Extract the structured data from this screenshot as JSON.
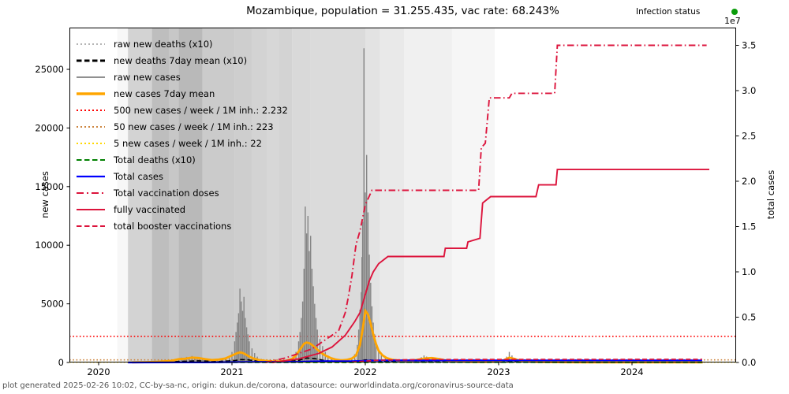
{
  "header": {
    "title": "Mozambique, population = 31.255.435, vac rate: 68.243%",
    "infection_status_label": "Infection status",
    "infection_status_color": "#0a9c0a"
  },
  "footer": {
    "text": "plot generated 2025-02-26 10:02, CC-by-sa-nc, origin: dukun.de/corona, datasource: ourworldindata.org/coronavirus-source-data"
  },
  "axes": {
    "left": {
      "label": "new cases",
      "ticks": [
        "0",
        "5000",
        "10000",
        "15000",
        "20000",
        "25000"
      ],
      "tick_values": [
        0,
        5000,
        10000,
        15000,
        20000,
        25000
      ],
      "ylim": [
        0,
        28560
      ]
    },
    "right": {
      "label": "total cases",
      "offset_label": "1e7",
      "ticks": [
        "0.0",
        "0.5",
        "1.0",
        "1.5",
        "2.0",
        "2.5",
        "3.0",
        "3.5"
      ],
      "tick_values": [
        0,
        0.5,
        1.0,
        1.5,
        2.0,
        2.5,
        3.0,
        3.5
      ],
      "ylim_e7": [
        0,
        3.696
      ]
    },
    "x": {
      "ticks": [
        "2020",
        "2021",
        "2022",
        "2023",
        "2024"
      ],
      "tick_values": [
        2020,
        2021,
        2022,
        2023,
        2024
      ],
      "xlim_years": [
        2019.781,
        2024.781
      ]
    }
  },
  "legend": [
    {
      "label": "raw new deaths (x10)",
      "color": "#ababab",
      "style": "dotted",
      "width": 1.8
    },
    {
      "label": "new deaths 7day mean (x10)",
      "color": "#000000",
      "style": "dashed",
      "width": 3
    },
    {
      "label": "raw new cases",
      "color": "#909090",
      "style": "solid",
      "width": 2
    },
    {
      "label": "new cases 7day mean",
      "color": "#FFA500",
      "style": "solid",
      "width": 3.5
    },
    {
      "label": "500 new cases / week / 1M inh.: 2.232",
      "color": "#FF0000",
      "style": "dotted",
      "width": 2
    },
    {
      "label": "50 new cases / week / 1M inh.: 223",
      "color": "#CD853F",
      "style": "dotted",
      "width": 2
    },
    {
      "label": "5 new cases / week / 1M inh.: 22",
      "color": "#FFD700",
      "style": "dotted",
      "width": 2
    },
    {
      "label": "Total deaths (x10)",
      "color": "#008000",
      "style": "dashed",
      "width": 2
    },
    {
      "label": "Total cases",
      "color": "#0000FF",
      "style": "solid",
      "width": 2.2
    },
    {
      "label": "Total vaccination doses",
      "color": "#DC143C",
      "style": "dashdot",
      "width": 2
    },
    {
      "label": "fully vaccinated",
      "color": "#DC143C",
      "style": "solid",
      "width": 2
    },
    {
      "label": "total booster vaccinations",
      "color": "#DC143C",
      "style": "dashed",
      "width": 2
    }
  ],
  "chart_data": {
    "type": "line",
    "title": "Mozambique, population = 31.255.435, vac rate: 68.243%",
    "xlabel": "",
    "ylabel_left": "new cases",
    "ylabel_right": "total cases",
    "x_unit": "year (decimal)",
    "background_bands": [
      [
        2020.14,
        2020.22,
        "#f7f7f7"
      ],
      [
        2020.22,
        2020.4,
        "#d3d3d3"
      ],
      [
        2020.4,
        2020.53,
        "#bebebe"
      ],
      [
        2020.53,
        2020.6,
        "#c7c7c7"
      ],
      [
        2020.6,
        2020.78,
        "#b9b9b9"
      ],
      [
        2020.78,
        2021.02,
        "#cbcbcb"
      ],
      [
        2021.02,
        2021.15,
        "#cecece"
      ],
      [
        2021.15,
        2021.26,
        "#d3d3d3"
      ],
      [
        2021.26,
        2021.35,
        "#d7d7d7"
      ],
      [
        2021.35,
        2021.45,
        "#d3d3d3"
      ],
      [
        2021.45,
        2021.59,
        "#d9d9d9"
      ],
      [
        2021.59,
        2022.0,
        "#dbdbdb"
      ],
      [
        2022.0,
        2022.11,
        "#e3e3e3"
      ],
      [
        2022.11,
        2022.29,
        "#e9e9e9"
      ],
      [
        2022.29,
        2022.65,
        "#f0f0f0"
      ],
      [
        2022.65,
        2022.97,
        "#f6f6f6"
      ]
    ],
    "thresholds_left_axis": [
      {
        "name": "500 new cases / week / 1M inh.",
        "value": 2232,
        "color": "#FF0000"
      },
      {
        "name": "50 new cases / week / 1M inh.",
        "value": 223,
        "color": "#CD853F"
      },
      {
        "name": "5 new cases / week / 1M inh.",
        "value": 22,
        "color": "#FFD700"
      }
    ],
    "raw_new_cases_bars": [
      [
        2020.25,
        20
      ],
      [
        2020.28,
        35
      ],
      [
        2020.31,
        25
      ],
      [
        2020.34,
        50
      ],
      [
        2020.37,
        40
      ],
      [
        2020.4,
        80
      ],
      [
        2020.43,
        60
      ],
      [
        2020.46,
        120
      ],
      [
        2020.49,
        90
      ],
      [
        2020.52,
        150
      ],
      [
        2020.55,
        200
      ],
      [
        2020.57,
        160
      ],
      [
        2020.6,
        340
      ],
      [
        2020.62,
        420
      ],
      [
        2020.64,
        300
      ],
      [
        2020.66,
        480
      ],
      [
        2020.68,
        380
      ],
      [
        2020.7,
        560
      ],
      [
        2020.72,
        460
      ],
      [
        2020.74,
        420
      ],
      [
        2020.76,
        350
      ],
      [
        2020.78,
        300
      ],
      [
        2020.8,
        260
      ],
      [
        2020.83,
        220
      ],
      [
        2020.86,
        190
      ],
      [
        2020.89,
        240
      ],
      [
        2020.92,
        300
      ],
      [
        2020.95,
        380
      ],
      [
        2020.98,
        480
      ],
      [
        2021.0,
        900
      ],
      [
        2021.02,
        1800
      ],
      [
        2021.03,
        2600
      ],
      [
        2021.04,
        3400
      ],
      [
        2021.05,
        4200
      ],
      [
        2021.06,
        6300
      ],
      [
        2021.07,
        5200
      ],
      [
        2021.08,
        4400
      ],
      [
        2021.09,
        5600
      ],
      [
        2021.1,
        3800
      ],
      [
        2021.11,
        3000
      ],
      [
        2021.12,
        2400
      ],
      [
        2021.13,
        1800
      ],
      [
        2021.15,
        1200
      ],
      [
        2021.17,
        800
      ],
      [
        2021.19,
        500
      ],
      [
        2021.22,
        300
      ],
      [
        2021.25,
        200
      ],
      [
        2021.3,
        120
      ],
      [
        2021.35,
        100
      ],
      [
        2021.4,
        150
      ],
      [
        2021.44,
        300
      ],
      [
        2021.46,
        500
      ],
      [
        2021.48,
        900
      ],
      [
        2021.5,
        1800
      ],
      [
        2021.51,
        2600
      ],
      [
        2021.52,
        3800
      ],
      [
        2021.53,
        5200
      ],
      [
        2021.54,
        8000
      ],
      [
        2021.55,
        13300
      ],
      [
        2021.56,
        11000
      ],
      [
        2021.57,
        12500
      ],
      [
        2021.58,
        9500
      ],
      [
        2021.59,
        10800
      ],
      [
        2021.6,
        8000
      ],
      [
        2021.61,
        6500
      ],
      [
        2021.62,
        5000
      ],
      [
        2021.63,
        3800
      ],
      [
        2021.64,
        2800
      ],
      [
        2021.66,
        2000
      ],
      [
        2021.68,
        1400
      ],
      [
        2021.7,
        900
      ],
      [
        2021.72,
        600
      ],
      [
        2021.75,
        400
      ],
      [
        2021.78,
        250
      ],
      [
        2021.82,
        150
      ],
      [
        2021.86,
        200
      ],
      [
        2021.9,
        400
      ],
      [
        2021.92,
        700
      ],
      [
        2021.94,
        1500
      ],
      [
        2021.95,
        2800
      ],
      [
        2021.96,
        4500
      ],
      [
        2021.97,
        6000
      ],
      [
        2021.975,
        9000
      ],
      [
        2021.98,
        12000
      ],
      [
        2021.99,
        26800
      ],
      [
        2022.0,
        14500
      ],
      [
        2022.01,
        17700
      ],
      [
        2022.02,
        12800
      ],
      [
        2022.03,
        9200
      ],
      [
        2022.04,
        6800
      ],
      [
        2022.05,
        4800
      ],
      [
        2022.06,
        3400
      ],
      [
        2022.07,
        2400
      ],
      [
        2022.08,
        1700
      ],
      [
        2022.1,
        1100
      ],
      [
        2022.12,
        700
      ],
      [
        2022.15,
        400
      ],
      [
        2022.2,
        200
      ],
      [
        2022.25,
        120
      ],
      [
        2022.3,
        150
      ],
      [
        2022.35,
        200
      ],
      [
        2022.4,
        300
      ],
      [
        2022.42,
        450
      ],
      [
        2022.44,
        600
      ],
      [
        2022.46,
        500
      ],
      [
        2022.48,
        400
      ],
      [
        2022.5,
        450
      ],
      [
        2022.52,
        350
      ],
      [
        2022.55,
        250
      ],
      [
        2022.6,
        120
      ],
      [
        2022.7,
        60
      ],
      [
        2022.8,
        40
      ],
      [
        2022.9,
        30
      ],
      [
        2023.0,
        150
      ],
      [
        2023.04,
        300
      ],
      [
        2023.06,
        500
      ],
      [
        2023.08,
        900
      ],
      [
        2023.1,
        600
      ],
      [
        2023.12,
        400
      ],
      [
        2023.15,
        250
      ],
      [
        2023.2,
        120
      ],
      [
        2023.3,
        60
      ],
      [
        2023.5,
        30
      ],
      [
        2023.7,
        20
      ],
      [
        2024.0,
        15
      ],
      [
        2024.2,
        10
      ],
      [
        2024.4,
        10
      ],
      [
        2024.53,
        10
      ]
    ],
    "new_cases_7day_mean": [
      [
        2020.25,
        5
      ],
      [
        2020.35,
        30
      ],
      [
        2020.45,
        70
      ],
      [
        2020.55,
        150
      ],
      [
        2020.6,
        280
      ],
      [
        2020.65,
        330
      ],
      [
        2020.7,
        420
      ],
      [
        2020.75,
        380
      ],
      [
        2020.8,
        280
      ],
      [
        2020.85,
        210
      ],
      [
        2020.9,
        250
      ],
      [
        2020.95,
        340
      ],
      [
        2021.0,
        600
      ],
      [
        2021.04,
        800
      ],
      [
        2021.06,
        860
      ],
      [
        2021.08,
        820
      ],
      [
        2021.1,
        700
      ],
      [
        2021.13,
        500
      ],
      [
        2021.16,
        350
      ],
      [
        2021.2,
        220
      ],
      [
        2021.25,
        140
      ],
      [
        2021.3,
        100
      ],
      [
        2021.35,
        90
      ],
      [
        2021.4,
        130
      ],
      [
        2021.45,
        300
      ],
      [
        2021.48,
        600
      ],
      [
        2021.51,
        1100
      ],
      [
        2021.54,
        1600
      ],
      [
        2021.56,
        1700
      ],
      [
        2021.58,
        1650
      ],
      [
        2021.6,
        1500
      ],
      [
        2021.63,
        1200
      ],
      [
        2021.66,
        900
      ],
      [
        2021.7,
        600
      ],
      [
        2021.74,
        380
      ],
      [
        2021.78,
        250
      ],
      [
        2021.82,
        180
      ],
      [
        2021.86,
        220
      ],
      [
        2021.9,
        350
      ],
      [
        2021.93,
        600
      ],
      [
        2021.96,
        1500
      ],
      [
        2021.98,
        2800
      ],
      [
        2022.0,
        4400
      ],
      [
        2022.02,
        4100
      ],
      [
        2022.04,
        3300
      ],
      [
        2022.06,
        2400
      ],
      [
        2022.08,
        1600
      ],
      [
        2022.1,
        1000
      ],
      [
        2022.13,
        600
      ],
      [
        2022.16,
        380
      ],
      [
        2022.2,
        240
      ],
      [
        2022.25,
        160
      ],
      [
        2022.3,
        140
      ],
      [
        2022.35,
        170
      ],
      [
        2022.4,
        250
      ],
      [
        2022.45,
        350
      ],
      [
        2022.5,
        380
      ],
      [
        2022.55,
        300
      ],
      [
        2022.6,
        180
      ],
      [
        2022.7,
        90
      ],
      [
        2022.8,
        50
      ],
      [
        2022.9,
        40
      ],
      [
        2023.0,
        80
      ],
      [
        2023.05,
        250
      ],
      [
        2023.08,
        420
      ],
      [
        2023.12,
        300
      ],
      [
        2023.16,
        150
      ],
      [
        2023.2,
        80
      ],
      [
        2023.3,
        40
      ],
      [
        2023.5,
        20
      ],
      [
        2023.7,
        15
      ],
      [
        2024.0,
        10
      ],
      [
        2024.3,
        8
      ],
      [
        2024.53,
        8
      ]
    ],
    "raw_new_deaths_x10": [
      [
        2020.3,
        5
      ],
      [
        2020.4,
        20
      ],
      [
        2020.6,
        120
      ],
      [
        2020.75,
        180
      ],
      [
        2020.9,
        100
      ],
      [
        2021.0,
        200
      ],
      [
        2021.05,
        320
      ],
      [
        2021.1,
        280
      ],
      [
        2021.2,
        120
      ],
      [
        2021.4,
        60
      ],
      [
        2021.5,
        250
      ],
      [
        2021.55,
        450
      ],
      [
        2021.6,
        400
      ],
      [
        2021.7,
        200
      ],
      [
        2021.8,
        80
      ],
      [
        2021.95,
        150
      ],
      [
        2022.0,
        280
      ],
      [
        2022.05,
        240
      ],
      [
        2022.1,
        150
      ],
      [
        2022.3,
        40
      ],
      [
        2022.5,
        60
      ],
      [
        2023.0,
        30
      ],
      [
        2023.08,
        80
      ],
      [
        2023.5,
        10
      ],
      [
        2024.5,
        5
      ]
    ],
    "new_deaths_7day_mean_x10": [
      [
        2020.3,
        2
      ],
      [
        2020.4,
        10
      ],
      [
        2020.6,
        90
      ],
      [
        2020.75,
        140
      ],
      [
        2020.9,
        80
      ],
      [
        2021.02,
        160
      ],
      [
        2021.07,
        250
      ],
      [
        2021.12,
        220
      ],
      [
        2021.2,
        100
      ],
      [
        2021.4,
        40
      ],
      [
        2021.5,
        180
      ],
      [
        2021.56,
        380
      ],
      [
        2021.62,
        330
      ],
      [
        2021.7,
        150
      ],
      [
        2021.8,
        60
      ],
      [
        2021.95,
        100
      ],
      [
        2022.0,
        220
      ],
      [
        2022.06,
        190
      ],
      [
        2022.12,
        110
      ],
      [
        2022.3,
        30
      ],
      [
        2022.5,
        40
      ],
      [
        2023.0,
        20
      ],
      [
        2023.1,
        60
      ],
      [
        2023.5,
        8
      ],
      [
        2024.5,
        4
      ]
    ],
    "total_cases_e7": [
      [
        2020.22,
        0.0001
      ],
      [
        2020.6,
        0.0006
      ],
      [
        2020.8,
        0.0012
      ],
      [
        2021.0,
        0.004
      ],
      [
        2021.1,
        0.006
      ],
      [
        2021.3,
        0.0066
      ],
      [
        2021.5,
        0.008
      ],
      [
        2021.6,
        0.012
      ],
      [
        2021.7,
        0.0145
      ],
      [
        2021.9,
        0.015
      ],
      [
        2022.0,
        0.019
      ],
      [
        2022.1,
        0.0225
      ],
      [
        2022.3,
        0.0228
      ],
      [
        2023.0,
        0.0231
      ],
      [
        2024.526,
        0.0234
      ]
    ],
    "total_deaths_x10_e7": [
      [
        2020.3,
        0.0001
      ],
      [
        2021.0,
        0.0006
      ],
      [
        2021.1,
        0.0009
      ],
      [
        2021.5,
        0.0012
      ],
      [
        2021.6,
        0.0017
      ],
      [
        2021.8,
        0.0019
      ],
      [
        2022.05,
        0.0021
      ],
      [
        2023.0,
        0.0022
      ],
      [
        2024.526,
        0.00225
      ]
    ],
    "total_vaccination_doses_e7": [
      [
        2021.25,
        0.0
      ],
      [
        2021.4,
        0.05
      ],
      [
        2021.5,
        0.1
      ],
      [
        2021.6,
        0.15
      ],
      [
        2021.7,
        0.25
      ],
      [
        2021.8,
        0.35
      ],
      [
        2021.85,
        0.55
      ],
      [
        2021.87,
        0.7
      ],
      [
        2021.9,
        0.96
      ],
      [
        2021.93,
        1.3
      ],
      [
        2021.96,
        1.45
      ],
      [
        2022.0,
        1.74
      ],
      [
        2022.05,
        1.9
      ],
      [
        2022.85,
        1.9
      ],
      [
        2022.87,
        2.37
      ],
      [
        2022.9,
        2.42
      ],
      [
        2022.93,
        2.92
      ],
      [
        2023.08,
        2.92
      ],
      [
        2023.1,
        2.97
      ],
      [
        2023.42,
        2.97
      ],
      [
        2023.44,
        3.5
      ],
      [
        2024.56,
        3.5
      ]
    ],
    "fully_vaccinated_e7": [
      [
        2021.3,
        0.0
      ],
      [
        2021.5,
        0.04
      ],
      [
        2021.65,
        0.1
      ],
      [
        2021.75,
        0.17
      ],
      [
        2021.85,
        0.3
      ],
      [
        2021.92,
        0.45
      ],
      [
        2021.96,
        0.55
      ],
      [
        2022.0,
        0.75
      ],
      [
        2022.03,
        0.9
      ],
      [
        2022.06,
        1.0
      ],
      [
        2022.1,
        1.09
      ],
      [
        2022.17,
        1.17
      ],
      [
        2022.59,
        1.17
      ],
      [
        2022.6,
        1.26
      ],
      [
        2022.76,
        1.26
      ],
      [
        2022.77,
        1.33
      ],
      [
        2022.86,
        1.37
      ],
      [
        2022.88,
        1.76
      ],
      [
        2022.94,
        1.83
      ],
      [
        2023.28,
        1.83
      ],
      [
        2023.3,
        1.96
      ],
      [
        2023.43,
        1.96
      ],
      [
        2023.44,
        2.13
      ],
      [
        2024.58,
        2.13
      ]
    ],
    "total_booster_vaccinations_e7": [
      [
        2021.9,
        0.005
      ],
      [
        2022.1,
        0.025
      ],
      [
        2022.4,
        0.032
      ],
      [
        2023.0,
        0.034
      ],
      [
        2024.526,
        0.035
      ]
    ]
  }
}
